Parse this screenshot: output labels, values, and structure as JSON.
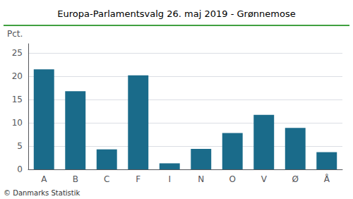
{
  "chart_data": {
    "type": "bar",
    "title": "Europa-Parlamentsvalg 26. maj 2019 - Grønnemose",
    "categories": [
      "A",
      "B",
      "C",
      "F",
      "I",
      "N",
      "O",
      "V",
      "Ø",
      "Å"
    ],
    "values": [
      21.5,
      16.8,
      4.3,
      20.2,
      1.3,
      4.4,
      7.8,
      11.7,
      8.9,
      3.7
    ],
    "color": "#1a6b8a",
    "ylabel": "Pct.",
    "ylim": [
      0,
      27
    ],
    "yticks": [
      0,
      5,
      10,
      15,
      20,
      25
    ],
    "grid": true,
    "annotations": [
      "© Danmarks Statistik"
    ]
  }
}
